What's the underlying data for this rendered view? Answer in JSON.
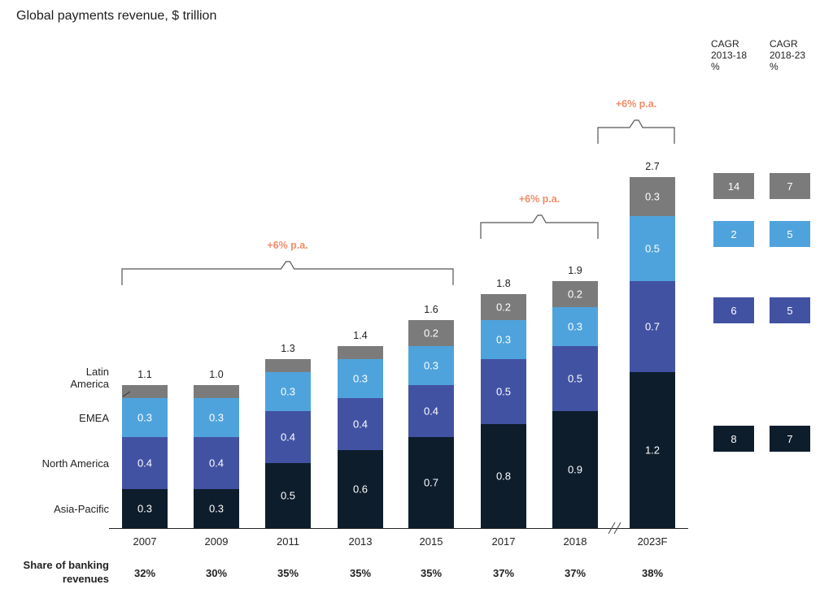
{
  "title": "Global payments revenue, $ trillion",
  "cagr_headers": [
    {
      "line1": "CAGR",
      "line2": "2013-18",
      "line3": "%"
    },
    {
      "line1": "CAGR",
      "line2": "2018-23",
      "line3": "%"
    }
  ],
  "colors": {
    "asia_pacific": "#0e1d2c",
    "north_america": "#4252a3",
    "emea": "#4fa3dc",
    "latin_america": "#7b7b7b",
    "annotation": "#f28b68",
    "bracket": "#555555"
  },
  "chart_data": {
    "type": "bar",
    "stacked": true,
    "title": "Global payments revenue, $ trillion",
    "categories": [
      "2007",
      "2009",
      "2011",
      "2013",
      "2015",
      "2017",
      "2018",
      "2023F"
    ],
    "series": [
      {
        "name": "Asia-Pacific",
        "key": "asia_pacific",
        "values": [
          0.3,
          0.3,
          0.5,
          0.6,
          0.7,
          0.8,
          0.9,
          1.2
        ],
        "labels": [
          "0.3",
          "0.3",
          "0.5",
          "0.6",
          "0.7",
          "0.8",
          "0.9",
          "1.2"
        ]
      },
      {
        "name": "North America",
        "key": "north_america",
        "values": [
          0.4,
          0.4,
          0.4,
          0.4,
          0.4,
          0.5,
          0.5,
          0.7
        ],
        "labels": [
          "0.4",
          "0.4",
          "0.4",
          "0.4",
          "0.4",
          "0.5",
          "0.5",
          "0.7"
        ]
      },
      {
        "name": "EMEA",
        "key": "emea",
        "values": [
          0.3,
          0.3,
          0.3,
          0.3,
          0.3,
          0.3,
          0.3,
          0.5
        ],
        "labels": [
          "0.3",
          "0.3",
          "0.3",
          "0.3",
          "0.3",
          "0.3",
          "0.3",
          "0.5"
        ]
      },
      {
        "name": "Latin America",
        "key": "latin_america",
        "values": [
          0.1,
          0.1,
          0.1,
          0.1,
          0.2,
          0.2,
          0.2,
          0.3
        ],
        "labels": [
          "",
          "",
          "",
          "",
          "0.2",
          "0.2",
          "0.2",
          "0.3"
        ]
      }
    ],
    "totals": [
      "1.1",
      "1.0",
      "1.3",
      "1.4",
      "1.6",
      "1.8",
      "1.9",
      "2.7"
    ],
    "legend_labels": [
      "Latin America",
      "EMEA",
      "North America",
      "Asia-Pacific"
    ],
    "share_row": {
      "label_line1": "Share of banking",
      "label_line2": "revenues",
      "values": [
        "32%",
        "30%",
        "35%",
        "35%",
        "35%",
        "37%",
        "37%",
        "38%"
      ]
    },
    "growth_annotations": [
      {
        "label": "+6% p.a.",
        "from": "2007",
        "to": "2015"
      },
      {
        "label": "+6% p.a.",
        "from": "2017",
        "to": "2018"
      },
      {
        "label": "+6% p.a.",
        "from": "2023F",
        "to": "2023F"
      }
    ],
    "axis_break": "between 2018 and 2023F",
    "cagr": {
      "latin_america": [
        "14",
        "7"
      ],
      "emea": [
        "2",
        "5"
      ],
      "north_america": [
        "6",
        "5"
      ],
      "asia_pacific": [
        "8",
        "7"
      ]
    }
  }
}
